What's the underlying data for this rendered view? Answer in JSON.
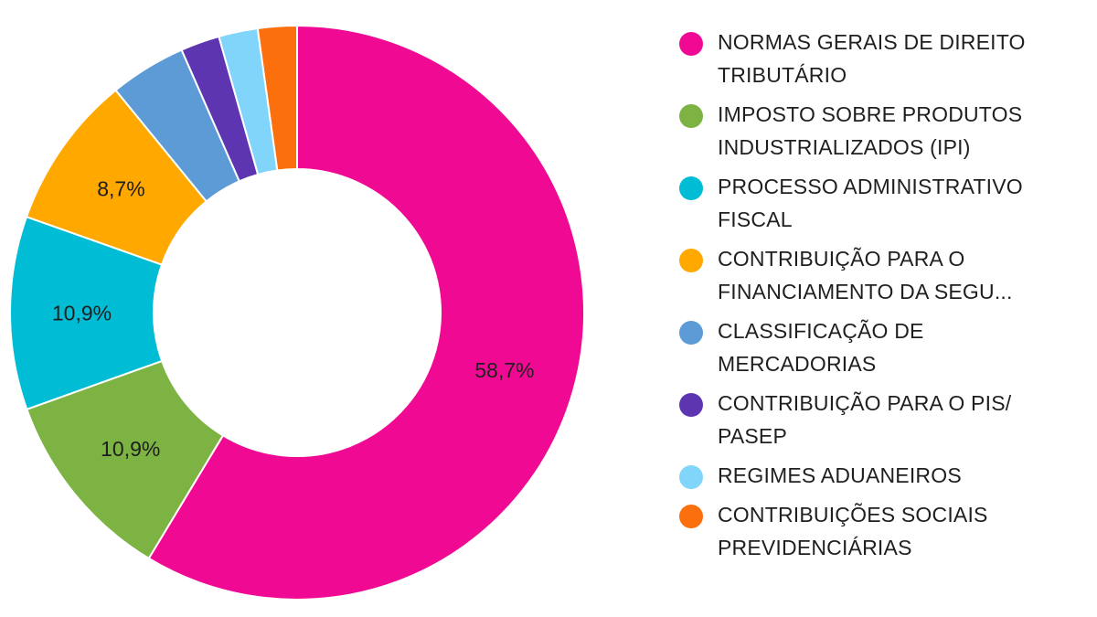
{
  "chart_data": {
    "type": "pie",
    "donut": true,
    "title": "",
    "legend_position": "right",
    "slices": [
      {
        "label": "NORMAS GERAIS DE DIREITO TRIBUTÁRIO",
        "label_lines": [
          "NORMAS GERAIS DE DIREITO",
          "TRIBUTÁRIO"
        ],
        "value": 58.7,
        "value_label": "58,7%",
        "color": "#f00a93"
      },
      {
        "label": "IMPOSTO SOBRE PRODUTOS INDUSTRIALIZADOS (IPI)",
        "label_lines": [
          "IMPOSTO SOBRE PRODUTOS",
          "INDUSTRIALIZADOS (IPI)"
        ],
        "value": 10.9,
        "value_label": "10,9%",
        "color": "#7cb342"
      },
      {
        "label": "PROCESSO ADMINISTRATIVO FISCAL",
        "label_lines": [
          "PROCESSO ADMINISTRATIVO",
          "FISCAL"
        ],
        "value": 10.9,
        "value_label": "10,9%",
        "color": "#00bcd4"
      },
      {
        "label": "CONTRIBUIÇÃO PARA O FINANCIAMENTO DA SEGU...",
        "label_lines": [
          "CONTRIBUIÇÃO PARA O",
          "FINANCIAMENTO DA SEGU..."
        ],
        "value": 8.7,
        "value_label": "8,7%",
        "color": "#ffa800"
      },
      {
        "label": "CLASSIFICAÇÃO DE MERCADORIAS",
        "label_lines": [
          "CLASSIFICAÇÃO DE",
          "MERCADORIAS"
        ],
        "value": 4.3,
        "value_label": "",
        "color": "#5c9bd6"
      },
      {
        "label": "CONTRIBUIÇÃO PARA O PIS/ PASEP",
        "label_lines": [
          "CONTRIBUIÇÃO PARA O PIS/",
          "PASEP"
        ],
        "value": 2.2,
        "value_label": "",
        "color": "#5e35b1"
      },
      {
        "label": "REGIMES ADUANEIROS",
        "label_lines": [
          "REGIMES ADUANEIROS"
        ],
        "value": 2.2,
        "value_label": "",
        "color": "#81d4fa"
      },
      {
        "label": "CONTRIBUIÇÕES SOCIAIS PREVIDENCIÁRIAS",
        "label_lines": [
          "CONTRIBUIÇÕES SOCIAIS",
          "PREVIDENCIÁRIAS"
        ],
        "value": 2.2,
        "value_label": "",
        "color": "#fb6f0d"
      }
    ]
  }
}
